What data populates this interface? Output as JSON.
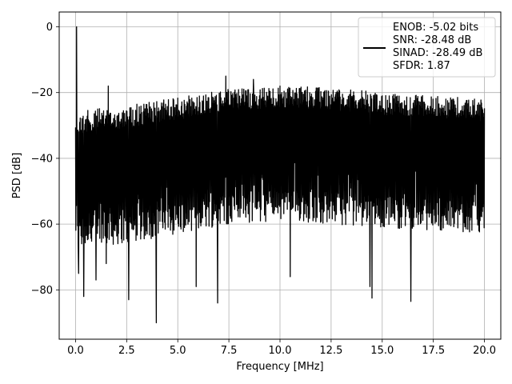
{
  "chart_data": {
    "type": "line",
    "xlabel": "Frequency [MHz]",
    "ylabel": "PSD [dB]",
    "xlim": [
      -0.8,
      20.8
    ],
    "ylim": [
      -95,
      4.5
    ],
    "xticks": [
      0.0,
      2.5,
      5.0,
      7.5,
      10.0,
      12.5,
      15.0,
      17.5,
      20.0
    ],
    "xtick_labels": [
      "0.0",
      "2.5",
      "5.0",
      "7.5",
      "10.0",
      "12.5",
      "15.0",
      "17.5",
      "20.0"
    ],
    "yticks": [
      0,
      -20,
      -40,
      -60,
      -80
    ],
    "ytick_labels": [
      "0",
      "−20",
      "−40",
      "−60",
      "−80"
    ],
    "grid": true,
    "legend_position": "top-right",
    "series_color": "#000000",
    "series": [
      {
        "name": "ENOB: -5.02 bits\nSNR: -28.48 dB\nSINAD: -28.49 dB\nSFDR: 1.87",
        "legend_lines": [
          "ENOB: -5.02 bits",
          "SNR: -28.48 dB",
          "SINAD: -28.49 dB",
          "SFDR: 1.87"
        ],
        "x_range": [
          0.0,
          20.0
        ],
        "dc_peak": {
          "x": 0.05,
          "y": 0
        },
        "upper_envelope": [
          [
            0.0,
            -26
          ],
          [
            1.0,
            -25
          ],
          [
            2.5,
            -24
          ],
          [
            5.0,
            -21.5
          ],
          [
            7.5,
            -19
          ],
          [
            10.0,
            -18
          ],
          [
            12.5,
            -18.5
          ],
          [
            15.0,
            -20
          ],
          [
            17.5,
            -21
          ],
          [
            20.0,
            -22
          ]
        ],
        "lower_envelope": [
          [
            0.0,
            -68
          ],
          [
            1.0,
            -67
          ],
          [
            2.5,
            -66
          ],
          [
            5.0,
            -63
          ],
          [
            7.5,
            -60
          ],
          [
            10.0,
            -59
          ],
          [
            12.5,
            -60
          ],
          [
            15.0,
            -61
          ],
          [
            17.5,
            -62
          ],
          [
            20.0,
            -63
          ]
        ],
        "spurs": [
          {
            "x": 1.6,
            "y": -18
          },
          {
            "x": 7.35,
            "y": -15
          },
          {
            "x": 8.7,
            "y": -16
          }
        ],
        "dips": [
          {
            "x": 0.15,
            "y": -75
          },
          {
            "x": 0.4,
            "y": -82
          },
          {
            "x": 1.0,
            "y": -77
          },
          {
            "x": 1.5,
            "y": -72
          },
          {
            "x": 2.6,
            "y": -83
          },
          {
            "x": 3.95,
            "y": -90
          },
          {
            "x": 5.9,
            "y": -79
          },
          {
            "x": 6.95,
            "y": -84
          },
          {
            "x": 10.5,
            "y": -76
          },
          {
            "x": 14.4,
            "y": -79
          },
          {
            "x": 14.5,
            "y": -82.5
          },
          {
            "x": 16.4,
            "y": -83.5
          }
        ]
      }
    ]
  }
}
